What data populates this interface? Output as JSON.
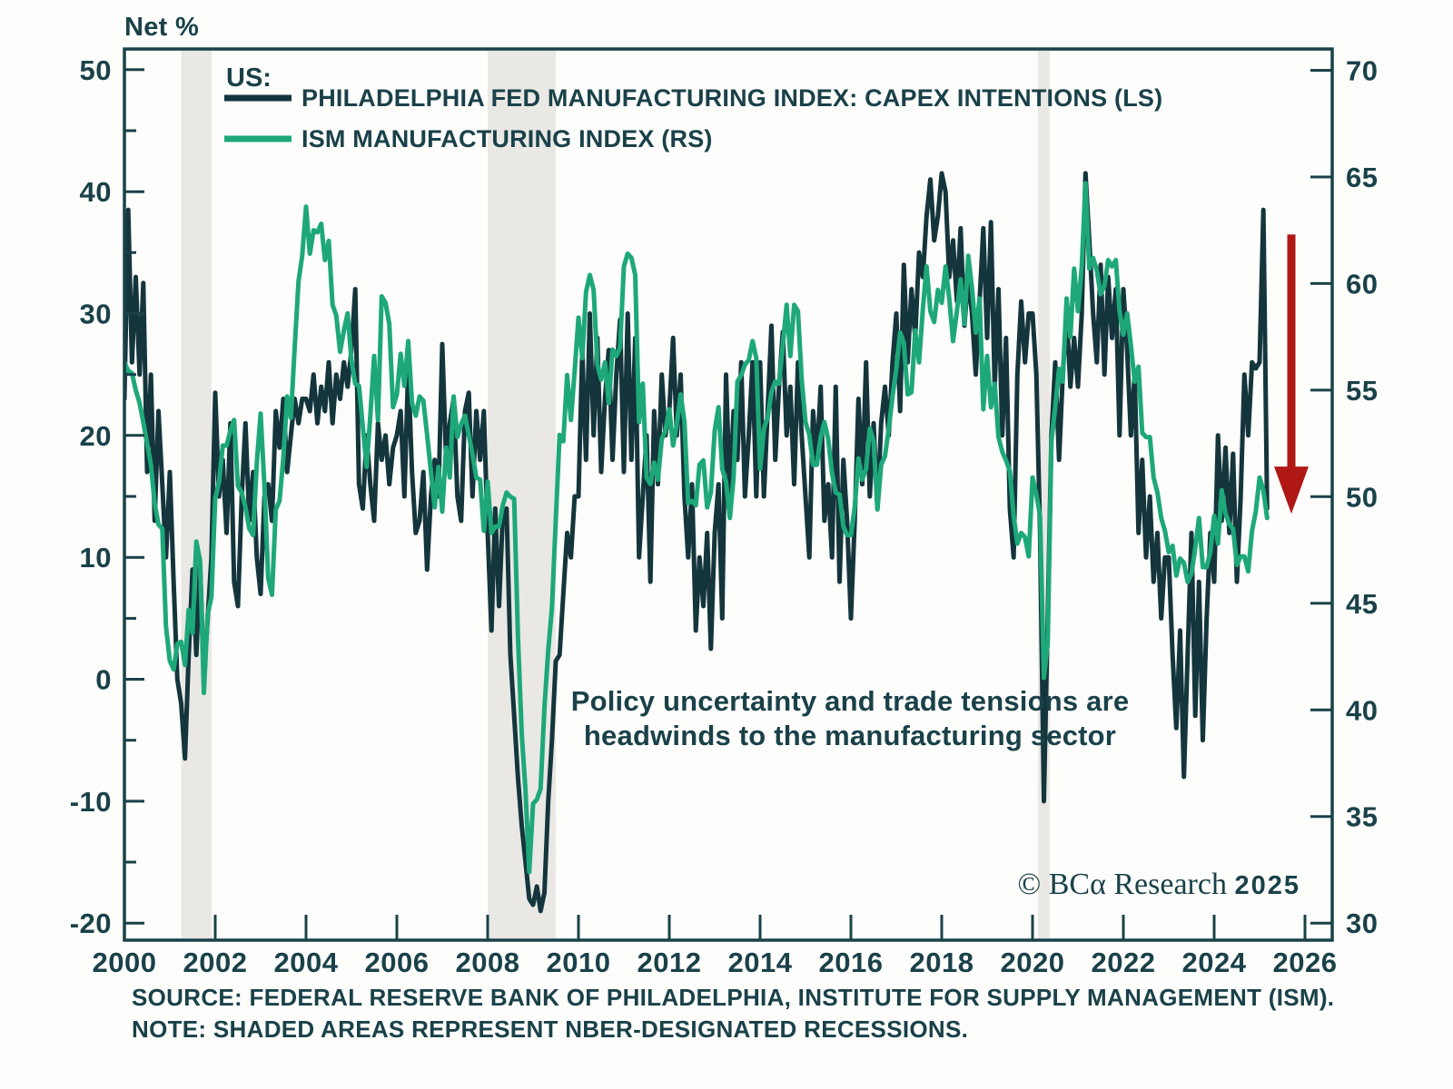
{
  "title": "Net %",
  "legend": {
    "group_label": "US:",
    "series": [
      {
        "label": "PHILADELPHIA FED MANUFACTURING INDEX: CAPEX INTENTIONS (LS)"
      },
      {
        "label": "ISM MANUFACTURING INDEX (RS)"
      }
    ]
  },
  "annotation": {
    "line1": "Policy uncertainty and trade tensions are",
    "line2": "headwinds to the manufacturing sector",
    "color": "#a61e22"
  },
  "watermark": {
    "brand": "© BCα Research ",
    "year": "2025"
  },
  "source_note": {
    "line1": "SOURCE: FEDERAL RESERVE BANK OF PHILADELPHIA, INSTITUTE FOR SUPPLY MANAGEMENT (ISM).",
    "line2": "NOTE: SHADED AREAS REPRESENT NBER-DESIGNATED RECESSIONS."
  },
  "colors": {
    "ink": "#1a4149",
    "philly_line": "#14353c",
    "ism_line": "#1ea87a",
    "recession_band": "#e9e8e4",
    "arrow_red": "#b01815",
    "background": "#fdfdfb"
  },
  "chart_data": {
    "type": "line",
    "title": "Net %",
    "x_axis": {
      "range": [
        2000,
        2026.6
      ],
      "ticks": [
        2000,
        2002,
        2004,
        2006,
        2008,
        2010,
        2012,
        2014,
        2016,
        2018,
        2020,
        2022,
        2024,
        2026
      ]
    },
    "left_axis": {
      "label": "Net %",
      "range": [
        -21.4,
        51.7
      ],
      "major_ticks": [
        50,
        40,
        30,
        20,
        10,
        0,
        -10,
        -20
      ],
      "minor_ticks": [
        45,
        35,
        25,
        15,
        5,
        -5,
        -15
      ]
    },
    "right_axis": {
      "range": [
        29.2,
        71.0
      ],
      "ticks": [
        70,
        65,
        60,
        55,
        50,
        45,
        40,
        35,
        30
      ]
    },
    "recessions": [
      [
        2001.25,
        2001.92
      ],
      [
        2008.0,
        2009.5
      ],
      [
        2020.12,
        2020.38
      ]
    ],
    "arrow": {
      "x": 2025.7,
      "axis": "right",
      "from": 62.3,
      "to": 49.2
    },
    "series": [
      {
        "name": "PHILADELPHIA FED MANUFACTURING INDEX: CAPEX INTENTIONS",
        "axis": "left",
        "color": "#14353c",
        "start_year": 2000,
        "points_per_year": 12,
        "values": [
          23,
          38.5,
          26,
          33,
          25,
          32.5,
          17,
          25,
          13,
          22,
          16,
          10,
          17,
          8,
          0,
          -2,
          -6.5,
          2,
          9,
          2,
          9.5,
          0,
          5,
          10,
          23.5,
          15,
          18,
          12,
          21,
          8,
          6,
          15,
          21,
          13,
          17,
          10,
          7,
          15,
          16,
          13,
          22,
          19,
          23,
          17,
          20,
          23,
          21,
          23,
          23,
          22,
          25,
          21,
          24,
          22,
          26,
          21,
          25,
          23,
          26,
          24,
          27,
          32,
          16,
          14,
          20,
          16,
          13,
          21,
          18,
          20,
          16,
          19,
          20,
          22,
          15,
          25.5,
          17,
          12,
          13,
          17,
          9,
          15,
          18,
          15,
          27.5,
          18,
          21,
          23,
          15,
          13,
          22,
          23.5,
          15,
          22,
          18,
          22,
          12,
          4,
          14,
          6,
          13.5,
          14,
          2,
          -3,
          -8,
          -12,
          -15,
          -18,
          -18.5,
          -17,
          -19,
          -17.5,
          -10,
          -5,
          1.5,
          2,
          7,
          12,
          10,
          15,
          15,
          27,
          18,
          30,
          20,
          28,
          17,
          23,
          27,
          18,
          25,
          29.5,
          17,
          30,
          18,
          28,
          10,
          15,
          20,
          8,
          22,
          16,
          25,
          20,
          22,
          28,
          20,
          25,
          15,
          10,
          16,
          4,
          10,
          6,
          12,
          2.5,
          12,
          16,
          5,
          25,
          15,
          22,
          18,
          26,
          15,
          20,
          26,
          15,
          26,
          15,
          22,
          29,
          18,
          24,
          28.5,
          20,
          24,
          16,
          26,
          20,
          15,
          10,
          22,
          18,
          24,
          13,
          16,
          10,
          24,
          8,
          18,
          13,
          5,
          13,
          23,
          16,
          26,
          15,
          21,
          14,
          21,
          24,
          20,
          26,
          30,
          22,
          34,
          26,
          32,
          28,
          35,
          33,
          38,
          41,
          36,
          38,
          41.5,
          40,
          33,
          36,
          31,
          37,
          29,
          33,
          30,
          25,
          31,
          37,
          28,
          37.5,
          24,
          32,
          20,
          28,
          14,
          10,
          25,
          31,
          26,
          30,
          30,
          25,
          12,
          -10,
          5,
          20,
          26,
          18,
          25,
          30,
          24,
          28,
          24,
          30,
          41.5,
          36,
          30,
          26,
          34,
          25,
          33,
          28,
          32,
          20,
          32,
          27,
          20,
          25,
          12,
          18,
          10,
          15,
          8,
          12,
          5,
          10,
          10,
          2,
          -4,
          4,
          -8,
          2,
          12,
          -3,
          8,
          -5,
          5,
          12,
          8,
          20,
          13,
          19,
          12,
          18.5,
          8,
          15,
          25,
          20,
          26,
          25.5,
          26,
          38.5,
          14
        ]
      },
      {
        "name": "ISM MANUFACTURING INDEX",
        "axis": "right",
        "color": "#1ea87a",
        "start_year": 2000,
        "points_per_year": 12,
        "values": [
          56.3,
          55.9,
          55.8,
          55,
          54.4,
          53.5,
          52.5,
          51.5,
          49.7,
          48.7,
          48.5,
          43.9,
          42.3,
          41.9,
          43.1,
          43.2,
          42.1,
          44.7,
          43.6,
          47.9,
          47,
          40.8,
          44.5,
          45.3,
          49.9,
          50.7,
          52.4,
          52.4,
          53.1,
          53.6,
          50.5,
          50.2,
          49.5,
          48.5,
          48.2,
          51.6,
          53.9,
          50.5,
          46.2,
          45.4,
          49.4,
          49.8,
          51.8,
          54.7,
          53.7,
          57,
          60.1,
          61.3,
          63.6,
          61.4,
          62.5,
          62.4,
          62.8,
          61.1,
          62,
          59,
          58.5,
          56.8,
          57.8,
          58.6,
          56.4,
          55.3,
          55.2,
          53.3,
          51.4,
          53.8,
          56.6,
          53.6,
          59.4,
          59.1,
          58.1,
          54.2,
          54.8,
          56.7,
          55.2,
          57.3,
          54.4,
          53.8,
          54.7,
          54.5,
          52.9,
          51.2,
          49.5,
          51.4,
          49.3,
          52.3,
          50.9,
          54.7,
          52.8,
          53.4,
          53.8,
          52.9,
          52,
          50.9,
          50.8,
          48.4,
          50.7,
          48.3,
          48.6,
          48.6,
          49.6,
          50.2,
          50,
          49.9,
          43.5,
          38.9,
          36.2,
          32.4,
          35.6,
          35.8,
          36.3,
          40.1,
          42.8,
          44.8,
          48.9,
          52.9,
          52.6,
          55.7,
          53.6,
          55.9,
          58.4,
          56.5,
          59.6,
          60.4,
          59.7,
          56.2,
          55.5,
          56.3,
          54.4,
          56.9,
          56.6,
          57,
          60.8,
          61.4,
          61.2,
          60.4,
          53.5,
          55.3,
          50.9,
          50.6,
          51.6,
          50.8,
          52.7,
          53.1,
          54.1,
          52.4,
          53.4,
          54.8,
          53.5,
          49.7,
          49.8,
          49.6,
          51.5,
          51.7,
          49.5,
          50.2,
          53.1,
          54.2,
          51.3,
          50.7,
          49,
          50.9,
          55.4,
          55.7,
          56.2,
          56.4,
          57.3,
          56.5,
          51.3,
          53.2,
          53.7,
          54.9,
          55.4,
          55.3,
          57.1,
          59,
          56.6,
          59,
          58.7,
          55.5,
          53.5,
          52.9,
          51.5,
          51.5,
          52.8,
          53.5,
          52.7,
          51.1,
          50.2,
          50.1,
          48.6,
          48.2,
          48.2,
          49.5,
          51.8,
          50.8,
          51.3,
          53.2,
          52.6,
          49.4,
          51.5,
          51.9,
          53.2,
          54.7,
          56,
          57.7,
          57.2,
          54.8,
          54.9,
          57.8,
          56.3,
          58.8,
          60.8,
          58.7,
          58.2,
          59.7,
          59.1,
          60.8,
          59.3,
          57.3,
          58.7,
          60.2,
          58.1,
          61.3,
          59.8,
          57.7,
          59.3,
          54.1,
          56.6,
          54.2,
          55.3,
          52.8,
          52.1,
          51.7,
          51.2,
          49.1,
          47.8,
          48.3,
          48.1,
          47.2,
          50.9,
          50.1,
          49.1,
          41.5,
          43.1,
          52.6,
          54.2,
          56,
          55.4,
          59.3,
          57.5,
          60.7,
          58.7,
          60.8,
          64.7,
          60.7,
          61.2,
          60.6,
          59.5,
          59.9,
          61.1,
          60.8,
          61.1,
          58.7,
          57.6,
          58.6,
          57.1,
          55.4,
          56.1,
          53,
          52.8,
          52.8,
          50.9,
          50.2,
          49,
          48.4,
          47.4,
          47.7,
          46.3,
          47.1,
          46.9,
          46,
          46.4,
          47.6,
          49,
          46.7,
          46.7,
          47.4,
          49.1,
          47.8,
          50.3,
          49.2,
          48.7,
          48.5,
          46.8,
          47.2,
          47.2,
          46.5,
          48.4,
          49.3,
          50.9,
          50.3,
          49
        ]
      }
    ]
  }
}
